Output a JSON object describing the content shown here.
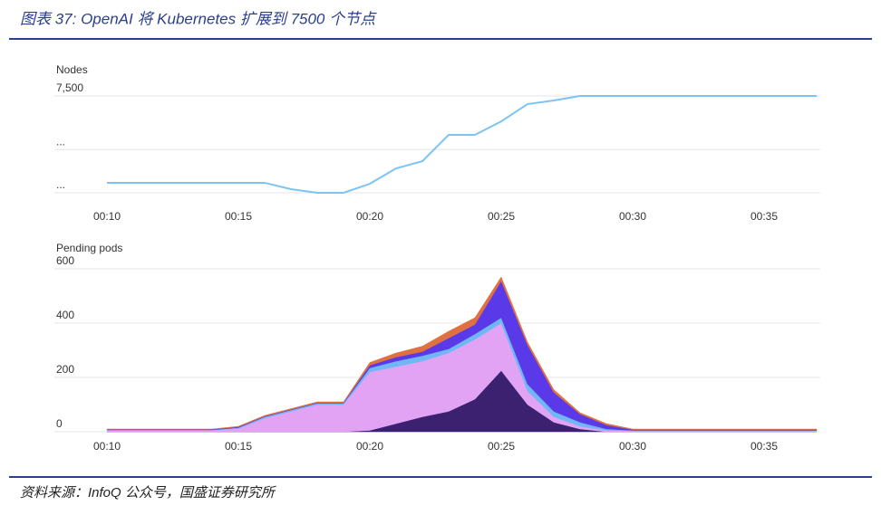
{
  "title": "图表 37: OpenAI 将 Kubernetes 扩展到 7500 个节点",
  "source": "资料来源：InfoQ 公众号，国盛证券研究所",
  "chart_data": [
    {
      "type": "line",
      "title": "Nodes",
      "categories": [
        "00:10",
        null,
        null,
        null,
        null,
        "00:15",
        null,
        null,
        null,
        null,
        "00:20",
        null,
        null,
        null,
        null,
        "00:25",
        null,
        null,
        null,
        null,
        "00:30",
        null,
        null,
        null,
        null,
        "00:35",
        null,
        null
      ],
      "series": [
        {
          "color": "#7cc4f5",
          "values": [
            1350,
            1350,
            1350,
            1350,
            1350,
            1350,
            1350,
            900,
            640,
            640,
            1280,
            2370,
            2880,
            4740,
            4740,
            5700,
            6920,
            7180,
            7500,
            7500,
            7500,
            7500,
            7500,
            7500,
            7500,
            7500,
            7500,
            7500
          ]
        }
      ],
      "ylim": [
        0,
        7500
      ],
      "yticks": [
        {
          "value": 640,
          "label": "..."
        },
        {
          "value": 3700,
          "label": "..."
        },
        {
          "value": 7500,
          "label": "7,500"
        }
      ],
      "grid": true
    },
    {
      "type": "stacked_area",
      "title": "Pending pods",
      "categories": [
        "00:10",
        null,
        null,
        null,
        null,
        "00:15",
        null,
        null,
        null,
        null,
        "00:20",
        null,
        null,
        null,
        null,
        "00:25",
        null,
        null,
        null,
        null,
        "00:30",
        null,
        null,
        null,
        null,
        "00:35",
        null,
        null
      ],
      "series": [
        {
          "color": "#3b2170",
          "values": [
            0,
            0,
            0,
            0,
            0,
            0,
            0,
            0,
            0,
            0,
            5,
            30,
            55,
            75,
            120,
            225,
            100,
            35,
            10,
            0,
            0,
            0,
            0,
            0,
            0,
            0,
            0,
            0
          ]
        },
        {
          "color": "#e3a3f5",
          "values": [
            5,
            5,
            5,
            5,
            5,
            12,
            50,
            75,
            100,
            100,
            215,
            210,
            205,
            215,
            220,
            175,
            50,
            20,
            10,
            5,
            3,
            3,
            3,
            3,
            3,
            3,
            3,
            3
          ]
        },
        {
          "color": "#70b8f5",
          "values": [
            2,
            2,
            2,
            2,
            2,
            3,
            5,
            5,
            5,
            5,
            15,
            20,
            20,
            15,
            20,
            20,
            25,
            20,
            15,
            5,
            2,
            2,
            2,
            2,
            2,
            2,
            2,
            2
          ]
        },
        {
          "color": "#5a3ae8",
          "values": [
            2,
            2,
            2,
            2,
            2,
            3,
            2,
            2,
            2,
            2,
            10,
            15,
            15,
            40,
            35,
            135,
            145,
            70,
            30,
            15,
            3,
            3,
            3,
            3,
            3,
            3,
            3,
            3
          ]
        },
        {
          "color": "#e07040",
          "values": [
            1,
            1,
            1,
            1,
            1,
            2,
            3,
            3,
            3,
            3,
            10,
            15,
            20,
            25,
            25,
            15,
            10,
            10,
            5,
            5,
            2,
            2,
            2,
            2,
            2,
            2,
            2,
            2
          ]
        }
      ],
      "ylim": [
        0,
        600
      ],
      "yticks": [
        0,
        200,
        400,
        600
      ],
      "grid": true
    }
  ]
}
